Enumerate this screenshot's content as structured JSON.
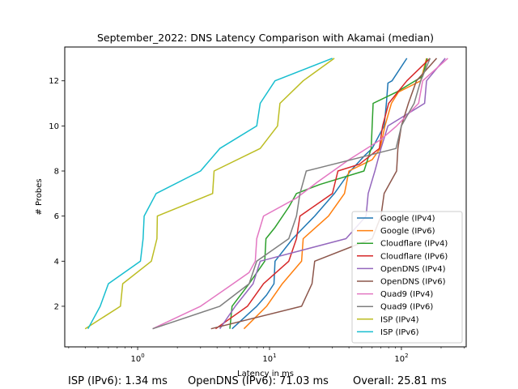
{
  "chart_data": {
    "type": "line",
    "title": "September_2022: DNS Latency Comparison with Akamai (median)",
    "xlabel": "Latency in ms",
    "ylabel": "# Probes",
    "xscale": "log",
    "xlim": [
      0.28,
      310
    ],
    "ylim": [
      0.2,
      13.5
    ],
    "xticks": [
      1,
      10,
      100
    ],
    "xtick_labels": [
      "10^0",
      "10^1",
      "10^2"
    ],
    "yticks": [
      2,
      4,
      6,
      8,
      10,
      12
    ],
    "grid": false,
    "legend_position": "lower right",
    "series": [
      {
        "name": "Google (IPv4)",
        "color": "#1f77b4",
        "points": [
          [
            5.2,
            1
          ],
          [
            8,
            2
          ],
          [
            9.5,
            2.5
          ],
          [
            10.8,
            3
          ],
          [
            11,
            4
          ],
          [
            15,
            5
          ],
          [
            22,
            6
          ],
          [
            31,
            7
          ],
          [
            41,
            8
          ],
          [
            53,
            8.7
          ],
          [
            60,
            9
          ],
          [
            74,
            10
          ],
          [
            77,
            11
          ],
          [
            79,
            11.9
          ],
          [
            85,
            12
          ],
          [
            110,
            13
          ]
        ]
      },
      {
        "name": "Google (IPv6)",
        "color": "#ff7f0e",
        "points": [
          [
            6.4,
            1
          ],
          [
            9.5,
            2
          ],
          [
            12.5,
            3
          ],
          [
            17.5,
            4
          ],
          [
            18,
            5
          ],
          [
            28,
            6
          ],
          [
            37,
            7
          ],
          [
            40,
            8
          ],
          [
            60,
            8.5
          ],
          [
            69,
            9
          ],
          [
            75,
            10
          ],
          [
            84,
            11
          ],
          [
            95,
            11.5
          ],
          [
            140,
            12
          ],
          [
            155,
            13
          ]
        ]
      },
      {
        "name": "Cloudflare (IPv4)",
        "color": "#2ca02c",
        "points": [
          [
            5,
            1
          ],
          [
            5.2,
            2
          ],
          [
            7,
            3
          ],
          [
            9.2,
            4
          ],
          [
            9.4,
            5
          ],
          [
            11,
            5.5
          ],
          [
            14,
            6.4
          ],
          [
            16,
            7
          ],
          [
            24,
            7.4
          ],
          [
            52,
            8
          ],
          [
            59,
            9
          ],
          [
            60,
            10
          ],
          [
            61,
            11
          ],
          [
            92,
            11.5
          ],
          [
            145,
            12.2
          ],
          [
            157,
            13
          ]
        ]
      },
      {
        "name": "Cloudflare (IPv6)",
        "color": "#d62728",
        "points": [
          [
            3.9,
            1
          ],
          [
            6.8,
            2
          ],
          [
            9,
            3
          ],
          [
            14,
            4
          ],
          [
            16,
            5
          ],
          [
            17,
            6
          ],
          [
            30,
            7
          ],
          [
            33,
            8
          ],
          [
            48,
            8.3
          ],
          [
            68,
            9
          ],
          [
            72,
            10
          ],
          [
            80,
            11
          ],
          [
            110,
            12
          ],
          [
            165,
            13
          ]
        ]
      },
      {
        "name": "OpenDNS (IPv4)",
        "color": "#9467bd",
        "points": [
          [
            4.2,
            1
          ],
          [
            5.5,
            2
          ],
          [
            7.5,
            3
          ],
          [
            8.5,
            4
          ],
          [
            38,
            5
          ],
          [
            54,
            6
          ],
          [
            56,
            7
          ],
          [
            63,
            8
          ],
          [
            70,
            9
          ],
          [
            79,
            10
          ],
          [
            150,
            11
          ],
          [
            155,
            12
          ],
          [
            215,
            13
          ]
        ]
      },
      {
        "name": "OpenDNS (IPv6)",
        "color": "#8c564b",
        "points": [
          [
            3.6,
            1
          ],
          [
            17.5,
            2
          ],
          [
            21,
            3
          ],
          [
            22,
            4
          ],
          [
            60,
            5
          ],
          [
            70,
            6
          ],
          [
            74,
            7
          ],
          [
            92,
            8
          ],
          [
            94,
            9
          ],
          [
            100,
            10
          ],
          [
            113,
            11
          ],
          [
            130,
            12
          ],
          [
            185,
            13
          ]
        ]
      },
      {
        "name": "Quad9 (IPv4)",
        "color": "#e377c2",
        "points": [
          [
            1.3,
            1
          ],
          [
            3,
            2
          ],
          [
            5,
            2.9
          ],
          [
            7,
            3.5
          ],
          [
            7.8,
            4
          ],
          [
            8,
            5
          ],
          [
            9,
            6
          ],
          [
            16,
            6.8
          ],
          [
            23,
            7.5
          ],
          [
            40,
            8.5
          ],
          [
            70,
            9.4
          ],
          [
            92,
            10
          ],
          [
            135,
            11
          ],
          [
            145,
            12
          ],
          [
            225,
            13
          ]
        ]
      },
      {
        "name": "Quad9 (IPv6)",
        "color": "#7f7f7f",
        "points": [
          [
            1.3,
            1
          ],
          [
            4.2,
            2
          ],
          [
            7,
            3
          ],
          [
            8,
            4
          ],
          [
            14,
            5
          ],
          [
            16,
            6
          ],
          [
            17,
            7
          ],
          [
            19,
            8
          ],
          [
            91,
            9
          ],
          [
            100,
            10
          ],
          [
            125,
            11
          ],
          [
            140,
            12
          ],
          [
            165,
            13
          ]
        ]
      },
      {
        "name": "ISP (IPv4)",
        "color": "#bcbd22",
        "points": [
          [
            0.4,
            1
          ],
          [
            0.74,
            2
          ],
          [
            0.77,
            3
          ],
          [
            1.27,
            4
          ],
          [
            1.4,
            5
          ],
          [
            1.41,
            6
          ],
          [
            3.7,
            7
          ],
          [
            3.8,
            8
          ],
          [
            8.5,
            9
          ],
          [
            11.5,
            10
          ],
          [
            12,
            11
          ],
          [
            18,
            12
          ],
          [
            31,
            13
          ]
        ]
      },
      {
        "name": "ISP (IPv6)",
        "color": "#17becf",
        "points": [
          [
            0.42,
            1
          ],
          [
            0.52,
            2
          ],
          [
            0.6,
            3
          ],
          [
            1.05,
            4
          ],
          [
            1.1,
            5
          ],
          [
            1.12,
            6
          ],
          [
            1.38,
            7
          ],
          [
            3,
            8
          ],
          [
            4.2,
            9
          ],
          [
            8,
            10
          ],
          [
            8.5,
            11
          ],
          [
            11,
            12
          ],
          [
            30,
            13
          ]
        ]
      }
    ]
  },
  "footer": {
    "isp_ipv6": "ISP (IPv6): 1.34 ms",
    "opendns_ipv6": "OpenDNS (IPv6): 71.03 ms",
    "overall": "Overall: 25.81 ms"
  }
}
